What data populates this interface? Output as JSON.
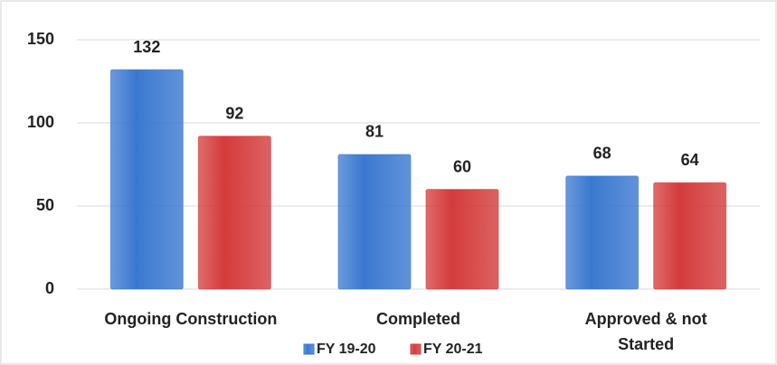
{
  "chart_data": {
    "type": "bar",
    "categories": [
      "Ongoing Construction",
      "Completed",
      "Approved & not Started"
    ],
    "series": [
      {
        "name": "FY 19-20",
        "color": "#3a78d0",
        "values": [
          132,
          81,
          68
        ]
      },
      {
        "name": "FY 20-21",
        "color": "#d43b3b",
        "values": [
          92,
          60,
          64
        ]
      }
    ],
    "ylim": [
      0,
      150
    ],
    "yticks": [
      0,
      50,
      100,
      150
    ],
    "grid": true,
    "legend": "bottom"
  }
}
